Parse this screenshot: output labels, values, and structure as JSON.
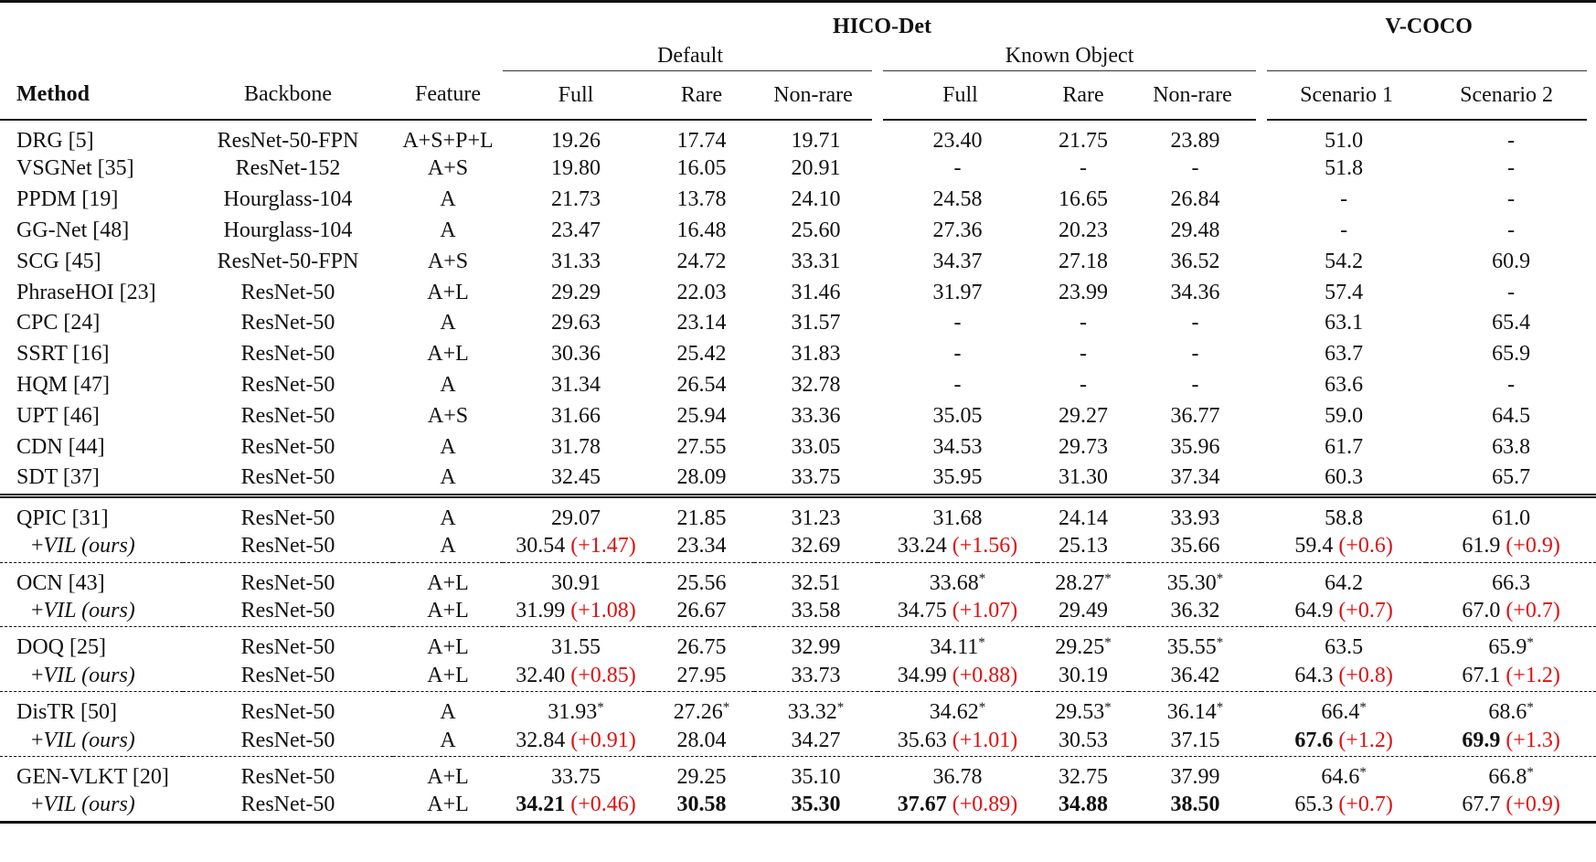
{
  "header": {
    "method": "Method",
    "backbone": "Backbone",
    "feature": "Feature",
    "hico": "HICO-Det",
    "vcoco": "V-COCO",
    "default": "Default",
    "known_object": "Known Object",
    "full": "Full",
    "rare": "Rare",
    "non_rare": "Non-rare",
    "scenario1": "Scenario 1",
    "scenario2": "Scenario 2"
  },
  "rows": [
    {
      "method": "DRG [5]",
      "backbone": "ResNet-50-FPN",
      "feature": "A+S+P+L",
      "d_full": "19.26",
      "d_rare": "17.74",
      "d_nonrare": "19.71",
      "k_full": "23.40",
      "k_rare": "21.75",
      "k_nonrare": "23.89",
      "s1": "51.0",
      "s2": "-"
    },
    {
      "method": "VSGNet [35]",
      "backbone": "ResNet-152",
      "feature": "A+S",
      "d_full": "19.80",
      "d_rare": "16.05",
      "d_nonrare": "20.91",
      "k_full": "-",
      "k_rare": "-",
      "k_nonrare": "-",
      "s1": "51.8",
      "s2": "-"
    },
    {
      "method": "PPDM [19]",
      "backbone": "Hourglass-104",
      "feature": "A",
      "d_full": "21.73",
      "d_rare": "13.78",
      "d_nonrare": "24.10",
      "k_full": "24.58",
      "k_rare": "16.65",
      "k_nonrare": "26.84",
      "s1": "-",
      "s2": "-"
    },
    {
      "method": "GG-Net [48]",
      "backbone": "Hourglass-104",
      "feature": "A",
      "d_full": "23.47",
      "d_rare": "16.48",
      "d_nonrare": "25.60",
      "k_full": "27.36",
      "k_rare": "20.23",
      "k_nonrare": "29.48",
      "s1": "-",
      "s2": "-"
    },
    {
      "method": "SCG [45]",
      "backbone": "ResNet-50-FPN",
      "feature": "A+S",
      "d_full": "31.33",
      "d_rare": "24.72",
      "d_nonrare": "33.31",
      "k_full": "34.37",
      "k_rare": "27.18",
      "k_nonrare": "36.52",
      "s1": "54.2",
      "s2": "60.9"
    },
    {
      "method": "PhraseHOI [23]",
      "backbone": "ResNet-50",
      "feature": "A+L",
      "d_full": "29.29",
      "d_rare": "22.03",
      "d_nonrare": "31.46",
      "k_full": "31.97",
      "k_rare": "23.99",
      "k_nonrare": "34.36",
      "s1": "57.4",
      "s2": "-"
    },
    {
      "method": "CPC [24]",
      "backbone": "ResNet-50",
      "feature": "A",
      "d_full": "29.63",
      "d_rare": "23.14",
      "d_nonrare": "31.57",
      "k_full": "-",
      "k_rare": "-",
      "k_nonrare": "-",
      "s1": "63.1",
      "s2": "65.4"
    },
    {
      "method": "SSRT [16]",
      "backbone": "ResNet-50",
      "feature": "A+L",
      "d_full": "30.36",
      "d_rare": "25.42",
      "d_nonrare": "31.83",
      "k_full": "-",
      "k_rare": "-",
      "k_nonrare": "-",
      "s1": "63.7",
      "s2": "65.9"
    },
    {
      "method": "HQM [47]",
      "backbone": "ResNet-50",
      "feature": "A",
      "d_full": "31.34",
      "d_rare": "26.54",
      "d_nonrare": "32.78",
      "k_full": "-",
      "k_rare": "-",
      "k_nonrare": "-",
      "s1": "63.6",
      "s2": "-"
    },
    {
      "method": "UPT [46]",
      "backbone": "ResNet-50",
      "feature": "A+S",
      "d_full": "31.66",
      "d_rare": "25.94",
      "d_nonrare": "33.36",
      "k_full": "35.05",
      "k_rare": "29.27",
      "k_nonrare": "36.77",
      "s1": "59.0",
      "s2": "64.5"
    },
    {
      "method": "CDN [44]",
      "backbone": "ResNet-50",
      "feature": "A",
      "d_full": "31.78",
      "d_rare": "27.55",
      "d_nonrare": "33.05",
      "k_full": "34.53",
      "k_rare": "29.73",
      "k_nonrare": "35.96",
      "s1": "61.7",
      "s2": "63.8"
    },
    {
      "method": "SDT [37]",
      "backbone": "ResNet-50",
      "feature": "A",
      "d_full": "32.45",
      "d_rare": "28.09",
      "d_nonrare": "33.75",
      "k_full": "35.95",
      "k_rare": "31.30",
      "k_nonrare": "37.34",
      "s1": "60.3",
      "s2": "65.7"
    }
  ],
  "groups": [
    {
      "base": {
        "method": "QPIC [31]",
        "backbone": "ResNet-50",
        "feature": "A",
        "d_full": "29.07",
        "d_rare": "21.85",
        "d_nonrare": "31.23",
        "k_full": "31.68",
        "k_rare": "24.14",
        "k_nonrare": "33.93",
        "s1": "58.8",
        "s2": "61.0"
      },
      "ours": {
        "prefix": "+",
        "method": "VIL (ours)",
        "backbone": "ResNet-50",
        "feature": "A",
        "d_full": "30.54",
        "d_full_delta": "(+1.47)",
        "d_rare": "23.34",
        "d_nonrare": "32.69",
        "k_full": "33.24",
        "k_full_delta": "(+1.56)",
        "k_rare": "25.13",
        "k_nonrare": "35.66",
        "s1": "59.4",
        "s1_delta": "(+0.6)",
        "s2": "61.9",
        "s2_delta": "(+0.9)"
      }
    },
    {
      "base": {
        "method": "OCN [43]",
        "backbone": "ResNet-50",
        "feature": "A+L",
        "d_full": "30.91",
        "d_rare": "25.56",
        "d_nonrare": "32.51",
        "k_full": "33.68",
        "k_full_star": "*",
        "k_rare": "28.27",
        "k_rare_star": "*",
        "k_nonrare": "35.30",
        "k_nonrare_star": "*",
        "s1": "64.2",
        "s2": "66.3"
      },
      "ours": {
        "prefix": "+",
        "method": "VIL (ours)",
        "backbone": "ResNet-50",
        "feature": "A+L",
        "d_full": "31.99",
        "d_full_delta": "(+1.08)",
        "d_rare": "26.67",
        "d_nonrare": "33.58",
        "k_full": "34.75",
        "k_full_delta": "(+1.07)",
        "k_rare": "29.49",
        "k_nonrare": "36.32",
        "s1": "64.9",
        "s1_delta": "(+0.7)",
        "s2": "67.0",
        "s2_delta": "(+0.7)"
      }
    },
    {
      "base": {
        "method": "DOQ [25]",
        "backbone": "ResNet-50",
        "feature": "A+L",
        "d_full": "31.55",
        "d_rare": "26.75",
        "d_nonrare": "32.99",
        "k_full": "34.11",
        "k_full_star": "*",
        "k_rare": "29.25",
        "k_rare_star": "*",
        "k_nonrare": "35.55",
        "k_nonrare_star": "*",
        "s1": "63.5",
        "s2": "65.9",
        "s2_star": "*"
      },
      "ours": {
        "prefix": "+",
        "method": "VIL (ours)",
        "backbone": "ResNet-50",
        "feature": "A+L",
        "d_full": "32.40",
        "d_full_delta": "(+0.85)",
        "d_rare": "27.95",
        "d_nonrare": "33.73",
        "k_full": "34.99",
        "k_full_delta": "(+0.88)",
        "k_rare": "30.19",
        "k_nonrare": "36.42",
        "s1": "64.3",
        "s1_delta": "(+0.8)",
        "s2": "67.1",
        "s2_delta": "(+1.2)"
      }
    },
    {
      "base": {
        "method": "DisTR [50]",
        "backbone": "ResNet-50",
        "feature": "A",
        "d_full": "31.93",
        "d_full_star": "*",
        "d_rare": "27.26",
        "d_rare_star": "*",
        "d_nonrare": "33.32",
        "d_nonrare_star": "*",
        "k_full": "34.62",
        "k_full_star": "*",
        "k_rare": "29.53",
        "k_rare_star": "*",
        "k_nonrare": "36.14",
        "k_nonrare_star": "*",
        "s1": "66.4",
        "s1_star": "*",
        "s2": "68.6",
        "s2_star": "*"
      },
      "ours": {
        "prefix": "+",
        "method": "VIL (ours)",
        "backbone": "ResNet-50",
        "feature": "A",
        "d_full": "32.84",
        "d_full_delta": "(+0.91)",
        "d_rare": "28.04",
        "d_nonrare": "34.27",
        "k_full": "35.63",
        "k_full_delta": "(+1.01)",
        "k_rare": "30.53",
        "k_nonrare": "37.15",
        "s1": "67.6",
        "s1_delta": "(+1.2)",
        "s2": "69.9",
        "s2_delta": "(+1.3)"
      }
    },
    {
      "base": {
        "method": "GEN-VLKT [20]",
        "backbone": "ResNet-50",
        "feature": "A+L",
        "d_full": "33.75",
        "d_rare": "29.25",
        "d_nonrare": "35.10",
        "k_full": "36.78",
        "k_rare": "32.75",
        "k_nonrare": "37.99",
        "s1": "64.6",
        "s1_star": "*",
        "s2": "66.8",
        "s2_star": "*"
      },
      "ours": {
        "prefix": "+",
        "method": "VIL (ours)",
        "backbone": "ResNet-50",
        "feature": "A+L",
        "d_full": "34.21",
        "d_full_delta": "(+0.46)",
        "d_rare": "30.58",
        "d_nonrare": "35.30",
        "k_full": "37.67",
        "k_full_delta": "(+0.89)",
        "k_rare": "34.88",
        "k_nonrare": "38.50",
        "s1": "65.3",
        "s1_delta": "(+0.7)",
        "s2": "67.7",
        "s2_delta": "(+0.9)"
      }
    }
  ],
  "colors": {
    "delta": "#e01010",
    "text": "#111111"
  }
}
